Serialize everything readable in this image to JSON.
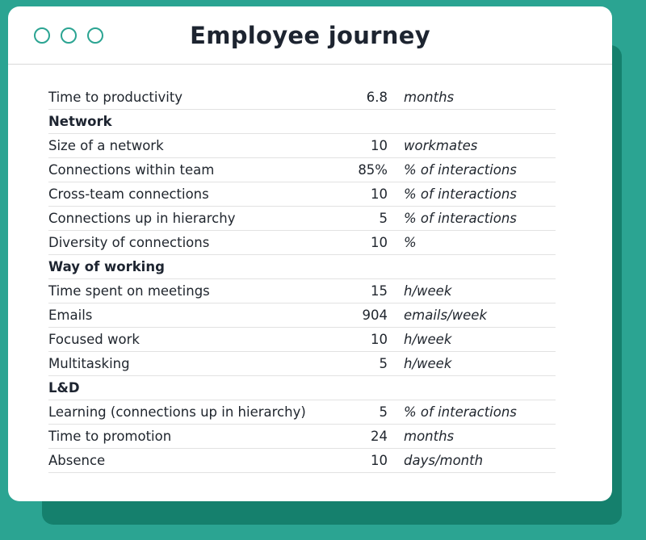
{
  "window": {
    "title": "Employee journey",
    "controls": [
      "circle",
      "circle",
      "circle"
    ]
  },
  "colors": {
    "background": "#2ba492",
    "shadow_card": "#15806d",
    "card": "#ffffff",
    "accent": "#2ba492",
    "text": "#20262e",
    "divider": "#e2e2e2"
  },
  "table": {
    "rows": [
      {
        "type": "data",
        "label": "Time to productivity",
        "value": "6.8",
        "unit": "months"
      },
      {
        "type": "section",
        "label": "Network"
      },
      {
        "type": "data",
        "label": "Size of a network",
        "value": "10",
        "unit": "workmates"
      },
      {
        "type": "data",
        "label": "Connections within team",
        "value": "85%",
        "unit": "% of interactions"
      },
      {
        "type": "data",
        "label": "Cross-team connections",
        "value": "10",
        "unit": "% of interactions"
      },
      {
        "type": "data",
        "label": "Connections up in hierarchy",
        "value": "5",
        "unit": "% of interactions"
      },
      {
        "type": "data",
        "label": "Diversity of connections",
        "value": "10",
        "unit": "%"
      },
      {
        "type": "section",
        "label": "Way of working"
      },
      {
        "type": "data",
        "label": "Time spent on meetings",
        "value": "15",
        "unit": "h/week"
      },
      {
        "type": "data",
        "label": "Emails",
        "value": "904",
        "unit": "emails/week"
      },
      {
        "type": "data",
        "label": "Focused work",
        "value": "10",
        "unit": "h/week"
      },
      {
        "type": "data",
        "label": "Multitasking",
        "value": "5",
        "unit": "h/week"
      },
      {
        "type": "section",
        "label": "L&D"
      },
      {
        "type": "data",
        "label": "Learning (connections up in hierarchy)",
        "value": "5",
        "unit": "% of interactions"
      },
      {
        "type": "data",
        "label": "Time to promotion",
        "value": "24",
        "unit": "months"
      },
      {
        "type": "data",
        "label": "Absence",
        "value": "10",
        "unit": "days/month"
      }
    ]
  }
}
